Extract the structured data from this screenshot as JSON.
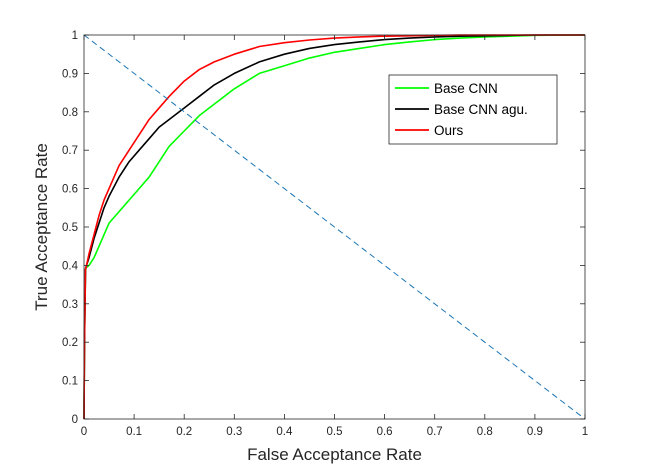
{
  "chart_data": {
    "type": "line",
    "title": "",
    "xlabel": "False Acceptance Rate",
    "ylabel": "True Acceptance Rate",
    "xlim": [
      0,
      1
    ],
    "ylim": [
      0,
      1
    ],
    "xticks": [
      0,
      0.1,
      0.2,
      0.3,
      0.4,
      0.5,
      0.6,
      0.7,
      0.8,
      0.9,
      1
    ],
    "yticks": [
      0,
      0.1,
      0.2,
      0.3,
      0.4,
      0.5,
      0.6,
      0.7,
      0.8,
      0.9,
      1
    ],
    "xtick_labels": [
      "0",
      "0.1",
      "0.2",
      "0.3",
      "0.4",
      "0.5",
      "0.6",
      "0.7",
      "0.8",
      "0.9",
      "1"
    ],
    "ytick_labels": [
      "0",
      "0.1",
      "0.2",
      "0.3",
      "0.4",
      "0.5",
      "0.6",
      "0.7",
      "0.8",
      "0.9",
      "1"
    ],
    "grid": false,
    "legend_position": "top-right",
    "series": [
      {
        "name": "Base CNN",
        "color": "#00ff00",
        "x": [
          0,
          0.001,
          0.003,
          0.005,
          0.01,
          0.02,
          0.03,
          0.04,
          0.05,
          0.07,
          0.09,
          0.11,
          0.13,
          0.15,
          0.17,
          0.2,
          0.23,
          0.26,
          0.3,
          0.35,
          0.4,
          0.45,
          0.5,
          0.55,
          0.6,
          0.65,
          0.7,
          0.75,
          0.8,
          0.85,
          0.9,
          1
        ],
        "y": [
          0,
          0.2,
          0.39,
          0.395,
          0.4,
          0.42,
          0.45,
          0.48,
          0.51,
          0.54,
          0.57,
          0.6,
          0.63,
          0.67,
          0.71,
          0.75,
          0.79,
          0.82,
          0.86,
          0.9,
          0.92,
          0.94,
          0.955,
          0.965,
          0.975,
          0.982,
          0.988,
          0.992,
          0.995,
          0.997,
          0.999,
          1
        ]
      },
      {
        "name": "Base CNN agu.",
        "color": "#000000",
        "x": [
          0,
          0.001,
          0.003,
          0.005,
          0.01,
          0.02,
          0.03,
          0.04,
          0.05,
          0.07,
          0.09,
          0.11,
          0.13,
          0.15,
          0.17,
          0.2,
          0.23,
          0.26,
          0.3,
          0.35,
          0.4,
          0.45,
          0.5,
          0.55,
          0.6,
          0.65,
          0.7,
          0.75,
          0.8,
          0.85,
          0.9,
          1
        ],
        "y": [
          0,
          0.2,
          0.39,
          0.4,
          0.42,
          0.47,
          0.51,
          0.55,
          0.58,
          0.63,
          0.67,
          0.7,
          0.73,
          0.76,
          0.78,
          0.81,
          0.84,
          0.87,
          0.9,
          0.93,
          0.95,
          0.965,
          0.975,
          0.982,
          0.988,
          0.992,
          0.995,
          0.997,
          0.998,
          0.999,
          1,
          1
        ]
      },
      {
        "name": "Ours",
        "color": "#ff0000",
        "x": [
          0,
          0.001,
          0.003,
          0.005,
          0.01,
          0.02,
          0.03,
          0.04,
          0.05,
          0.07,
          0.09,
          0.11,
          0.13,
          0.15,
          0.17,
          0.2,
          0.23,
          0.26,
          0.3,
          0.35,
          0.4,
          0.45,
          0.5,
          0.55,
          0.6,
          0.65,
          0.7,
          0.75,
          0.8,
          0.85,
          0.9,
          1
        ],
        "y": [
          0,
          0.2,
          0.39,
          0.4,
          0.43,
          0.48,
          0.53,
          0.57,
          0.6,
          0.66,
          0.7,
          0.74,
          0.78,
          0.81,
          0.84,
          0.88,
          0.91,
          0.93,
          0.95,
          0.97,
          0.98,
          0.987,
          0.992,
          0.995,
          0.997,
          0.998,
          0.999,
          1,
          1,
          1,
          1,
          1
        ]
      },
      {
        "name": "",
        "color": "#1f77b4",
        "dashed": true,
        "x": [
          0,
          1
        ],
        "y": [
          1,
          0
        ]
      }
    ]
  }
}
